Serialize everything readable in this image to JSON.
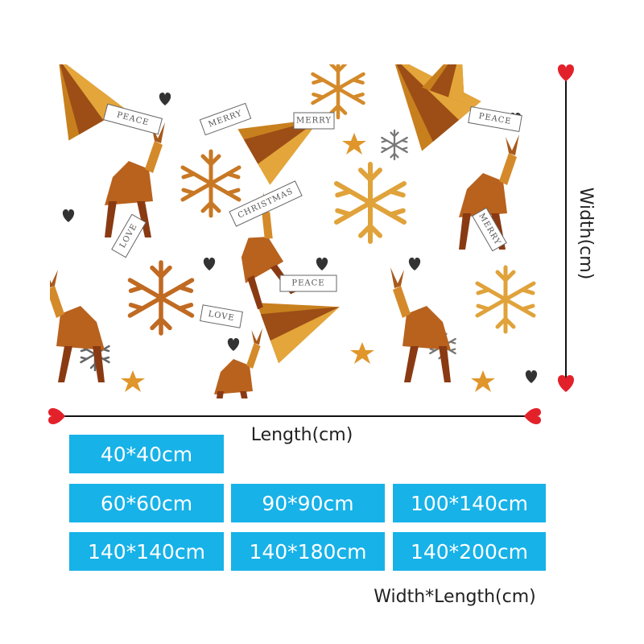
{
  "pattern": {
    "banners": [
      "PEACE",
      "MERRY",
      "MERRY",
      "PEACE",
      "CHRISTMAS",
      "PEACE",
      "LOVE",
      "LOVE",
      "MERRY"
    ]
  },
  "dimensions": {
    "width_label": "Width(cm)",
    "length_label": "Length(cm)"
  },
  "sizes": [
    [
      "40*40cm"
    ],
    [
      "60*60cm",
      "90*90cm",
      "100*140cm"
    ],
    [
      "140*140cm",
      "140*180cm",
      "140*200cm"
    ]
  ],
  "footer": "Width*Length(cm)"
}
